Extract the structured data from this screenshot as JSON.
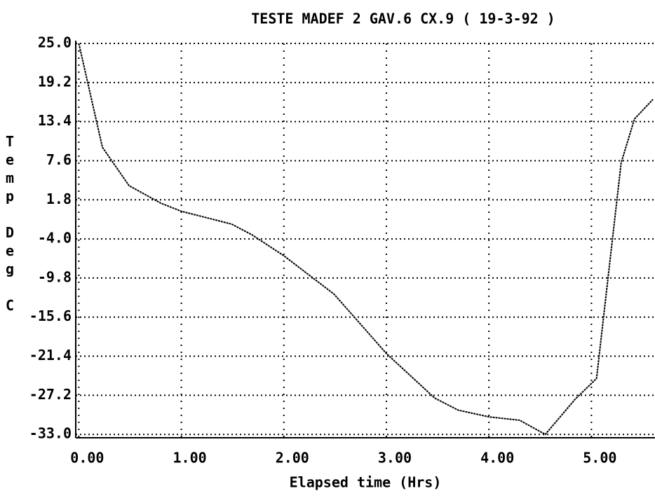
{
  "chart_data": {
    "type": "line",
    "title": "TESTE MADEF 2 GAV.6 CX.9 ( 19-3-92 )",
    "x_label": "Elapsed time (Hrs)",
    "y_label": "Temp Deg C",
    "x": [
      0.0,
      0.23,
      0.49,
      0.8,
      1.0,
      1.49,
      1.69,
      2.0,
      2.49,
      3.0,
      3.47,
      3.7,
      4.0,
      4.3,
      4.55,
      4.84,
      5.05,
      5.29,
      5.42,
      5.6
    ],
    "series": [
      {
        "name": "Temp",
        "color": "#000000",
        "values": [
          25.0,
          9.6,
          3.9,
          1.3,
          0.1,
          -1.8,
          -3.4,
          -6.5,
          -12.2,
          -21.0,
          -27.6,
          -29.4,
          -30.4,
          -30.9,
          -33.0,
          -27.8,
          -24.7,
          7.3,
          13.8,
          16.7
        ]
      }
    ],
    "xlim": [
      -0.03,
      5.62
    ],
    "ylim": [
      -33.5,
      25.0
    ],
    "xticks": [
      {
        "value": 0,
        "label": "0.00"
      },
      {
        "value": 1,
        "label": "1.00"
      },
      {
        "value": 2,
        "label": "2.00"
      },
      {
        "value": 3,
        "label": "3.00"
      },
      {
        "value": 4,
        "label": "4.00"
      },
      {
        "value": 5,
        "label": "5.00"
      }
    ],
    "yticks": [
      {
        "value": 25,
        "label": "25.0"
      },
      19.2,
      13.4,
      7.6,
      1.8,
      {
        "value": -4,
        "label": "-4.0"
      },
      -9.8,
      -15.6,
      -21.4,
      -27.2,
      {
        "value": -33,
        "label": "-33.0"
      }
    ],
    "grid": true
  }
}
